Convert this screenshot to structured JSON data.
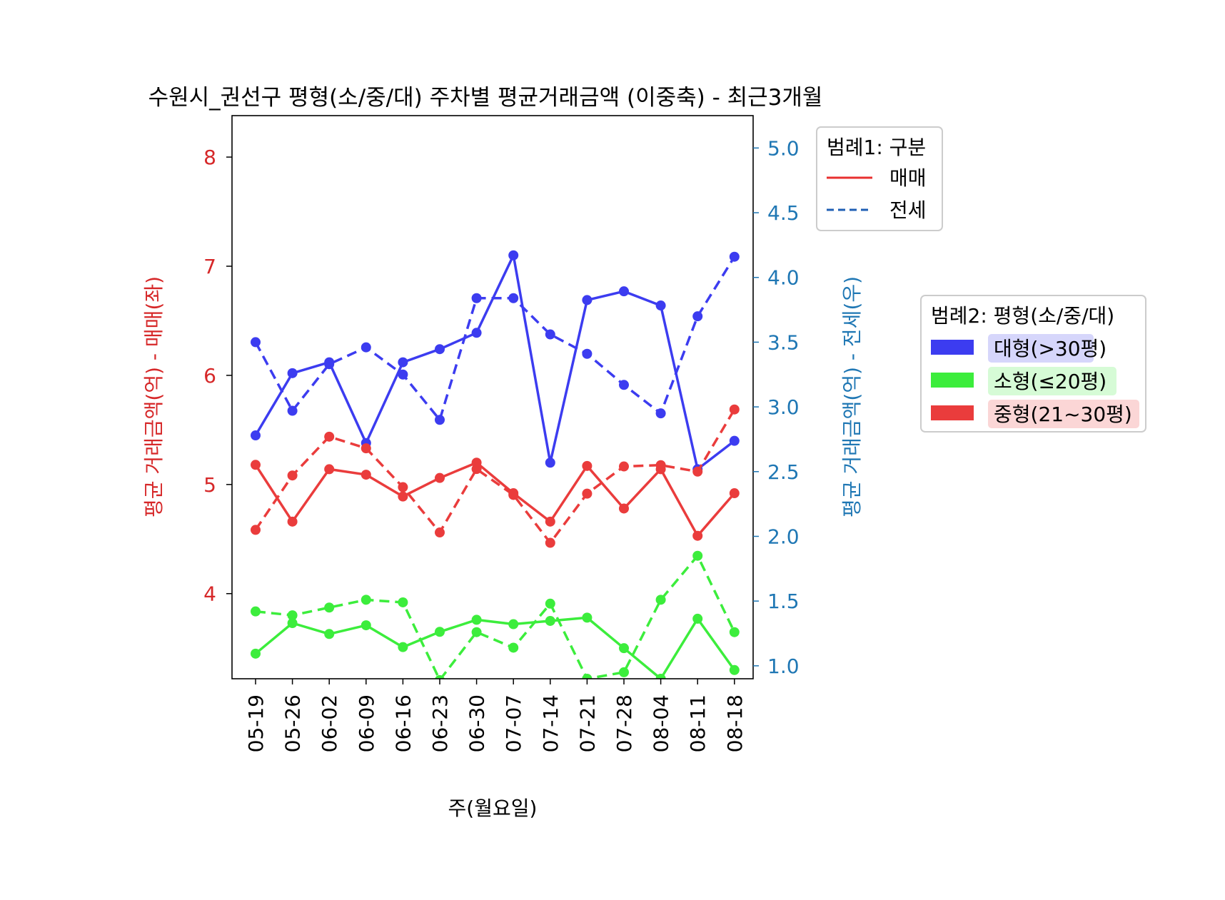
{
  "chart_data": {
    "type": "line",
    "title": "수원시_권선구 평형(소/중/대) 주차별 평균거래금액 (이중축) - 최근3개월",
    "xlabel": "주(월요일)",
    "ylabel_left": "평균 거래금액(억) - 매매(좌)",
    "ylabel_right": "평균 거래금액(억) - 전세(우)",
    "categories": [
      "05-19",
      "05-26",
      "06-02",
      "06-09",
      "06-16",
      "06-23",
      "06-30",
      "07-07",
      "07-14",
      "07-21",
      "07-28",
      "08-04",
      "08-11",
      "08-18"
    ],
    "ylim_left": [
      3.22,
      8.38
    ],
    "yticks_left": [
      4,
      5,
      6,
      7,
      8
    ],
    "ylim_right": [
      0.9,
      5.25
    ],
    "yticks_right": [
      "1.0",
      "1.5",
      "2.0",
      "2.5",
      "3.0",
      "3.5",
      "4.0",
      "4.5",
      "5.0"
    ],
    "colors": {
      "large": "#3c3cf0",
      "small": "#3ced3c",
      "medium": "#ea3c3c",
      "left_axis": "#d62728",
      "right_axis": "#1f77b4"
    },
    "series": [
      {
        "name": "대형(>30평)",
        "group": "large",
        "deal": "매매",
        "axis": "left",
        "values": [
          5.45,
          6.02,
          6.12,
          5.38,
          6.12,
          6.24,
          6.39,
          7.1,
          5.2,
          6.69,
          6.77,
          6.64,
          5.14,
          5.4
        ]
      },
      {
        "name": "소형(≤20평)",
        "group": "small",
        "deal": "매매",
        "axis": "left",
        "values": [
          3.45,
          3.73,
          3.63,
          3.71,
          3.51,
          3.65,
          3.76,
          3.72,
          3.75,
          3.78,
          3.5,
          3.22,
          3.77,
          3.3
        ]
      },
      {
        "name": "중형(21~30평)",
        "group": "medium",
        "deal": "매매",
        "axis": "left",
        "values": [
          5.18,
          4.66,
          5.14,
          5.09,
          4.89,
          5.06,
          5.2,
          4.92,
          4.66,
          5.17,
          4.78,
          5.14,
          4.53,
          4.92
        ]
      },
      {
        "name": "대형(>30평)",
        "group": "large",
        "deal": "전세",
        "axis": "right",
        "values": [
          3.5,
          2.97,
          3.33,
          3.46,
          3.25,
          2.9,
          3.84,
          3.84,
          3.56,
          3.41,
          3.17,
          2.95,
          3.7,
          4.16
        ]
      },
      {
        "name": "소형(≤20평)",
        "group": "small",
        "deal": "전세",
        "axis": "right",
        "values": [
          1.42,
          1.39,
          1.45,
          1.51,
          1.49,
          0.89,
          1.26,
          1.14,
          1.48,
          0.9,
          0.95,
          1.51,
          1.85,
          1.26
        ]
      },
      {
        "name": "중형(21~30평)",
        "group": "medium",
        "deal": "전세",
        "axis": "right",
        "values": [
          2.05,
          2.47,
          2.77,
          2.68,
          2.38,
          2.03,
          2.52,
          2.32,
          1.95,
          2.33,
          2.54,
          2.55,
          2.5,
          2.98
        ]
      }
    ],
    "legend1": {
      "title": "범례1: 구분",
      "items": [
        {
          "label": "매매",
          "style": "solid"
        },
        {
          "label": "전세",
          "style": "dashed"
        }
      ],
      "position": "outside right, top"
    },
    "legend2": {
      "title": "범례2: 평형(소/중/대)",
      "items": [
        {
          "label": "대형(>30평)",
          "group": "large"
        },
        {
          "label": "소형(≤20평)",
          "group": "small"
        },
        {
          "label": "중형(21~30평)",
          "group": "medium"
        }
      ],
      "position": "outside right, middle"
    },
    "grid": false
  }
}
